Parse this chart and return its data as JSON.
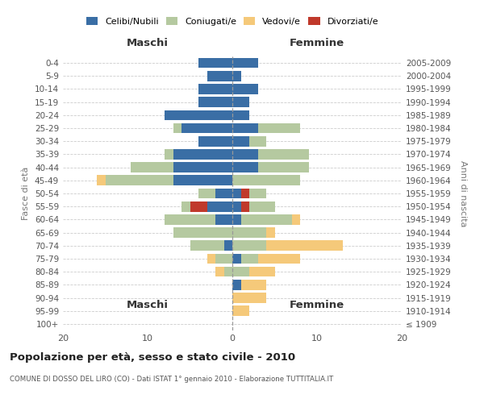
{
  "age_groups": [
    "100+",
    "95-99",
    "90-94",
    "85-89",
    "80-84",
    "75-79",
    "70-74",
    "65-69",
    "60-64",
    "55-59",
    "50-54",
    "45-49",
    "40-44",
    "35-39",
    "30-34",
    "25-29",
    "20-24",
    "15-19",
    "10-14",
    "5-9",
    "0-4"
  ],
  "birth_years": [
    "≤ 1909",
    "1910-1914",
    "1915-1919",
    "1920-1924",
    "1925-1929",
    "1930-1934",
    "1935-1939",
    "1940-1944",
    "1945-1949",
    "1950-1954",
    "1955-1959",
    "1960-1964",
    "1965-1969",
    "1970-1974",
    "1975-1979",
    "1980-1984",
    "1985-1989",
    "1990-1994",
    "1995-1999",
    "2000-2004",
    "2005-2009"
  ],
  "male_celibi": [
    0,
    0,
    0,
    0,
    0,
    0,
    1,
    0,
    2,
    3,
    2,
    7,
    7,
    7,
    4,
    6,
    8,
    4,
    4,
    3,
    4
  ],
  "male_coniugati": [
    0,
    0,
    0,
    0,
    1,
    2,
    4,
    7,
    6,
    3,
    2,
    8,
    5,
    1,
    0,
    1,
    0,
    0,
    0,
    0,
    0
  ],
  "male_vedovi": [
    0,
    0,
    0,
    0,
    1,
    1,
    0,
    0,
    0,
    0,
    0,
    1,
    0,
    0,
    0,
    0,
    0,
    0,
    0,
    0,
    0
  ],
  "male_divorziati": [
    0,
    0,
    0,
    0,
    0,
    0,
    0,
    0,
    0,
    2,
    0,
    0,
    0,
    0,
    0,
    0,
    0,
    0,
    0,
    0,
    0
  ],
  "female_nubili": [
    0,
    0,
    0,
    1,
    0,
    1,
    0,
    0,
    1,
    1,
    1,
    0,
    3,
    3,
    2,
    3,
    2,
    2,
    3,
    1,
    3
  ],
  "female_coniugate": [
    0,
    0,
    0,
    0,
    2,
    2,
    4,
    4,
    6,
    4,
    3,
    8,
    6,
    6,
    2,
    5,
    0,
    0,
    0,
    0,
    0
  ],
  "female_vedove": [
    0,
    2,
    4,
    3,
    3,
    5,
    9,
    1,
    1,
    0,
    0,
    0,
    0,
    0,
    0,
    0,
    0,
    0,
    0,
    0,
    0
  ],
  "female_divorziate": [
    0,
    0,
    0,
    0,
    0,
    0,
    0,
    0,
    0,
    1,
    1,
    0,
    0,
    0,
    0,
    0,
    0,
    0,
    0,
    0,
    0
  ],
  "color_celibi": "#3a6ea5",
  "color_coniugati": "#b5c9a0",
  "color_vedovi": "#f5c97a",
  "color_divorziati": "#c0392b",
  "xlim": 20,
  "title": "Popolazione per età, sesso e stato civile - 2010",
  "subtitle": "COMUNE DI DOSSO DEL LIRO (CO) - Dati ISTAT 1° gennaio 2010 - Elaborazione TUTTITALIA.IT",
  "ylabel_left": "Fasce di età",
  "ylabel_right": "Anni di nascita",
  "label_maschi": "Maschi",
  "label_femmine": "Femmine",
  "legend_celibi": "Celibi/Nubili",
  "legend_coniugati": "Coniugati/e",
  "legend_vedovi": "Vedovi/e",
  "legend_divorziati": "Divorziati/e",
  "bg_color": "#ffffff",
  "grid_color": "#cccccc"
}
